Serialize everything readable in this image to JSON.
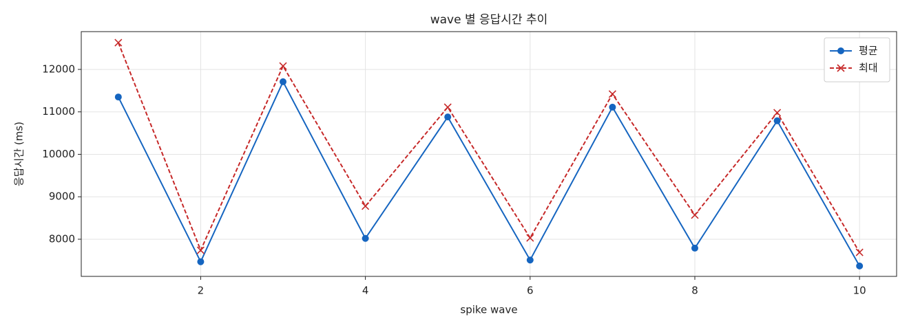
{
  "chart_data": {
    "type": "line",
    "title": "wave 별 응답시간 추이",
    "x_label": "spike wave",
    "y_label": "응답시간 (ms)",
    "x": [
      1,
      2,
      3,
      4,
      5,
      6,
      7,
      8,
      9,
      10
    ],
    "series": [
      {
        "name": "평균",
        "color": "#1565c0",
        "marker": "circle",
        "dash": "solid",
        "values": [
          11350,
          7470,
          11710,
          8020,
          10880,
          7510,
          11110,
          7790,
          10790,
          7370
        ]
      },
      {
        "name": "최대",
        "color": "#c62828",
        "marker": "x",
        "dash": "dashed",
        "values": [
          12630,
          7740,
          12080,
          8780,
          11110,
          8030,
          11420,
          8570,
          10980,
          7690
        ]
      }
    ],
    "xlim": [
      0.55,
      10.45
    ],
    "xticks": [
      2,
      4,
      6,
      8,
      10
    ],
    "ylim": [
      7125,
      12890
    ],
    "yticks": [
      8000,
      9000,
      10000,
      11000,
      12000
    ],
    "grid": true,
    "legend": "upper right"
  }
}
